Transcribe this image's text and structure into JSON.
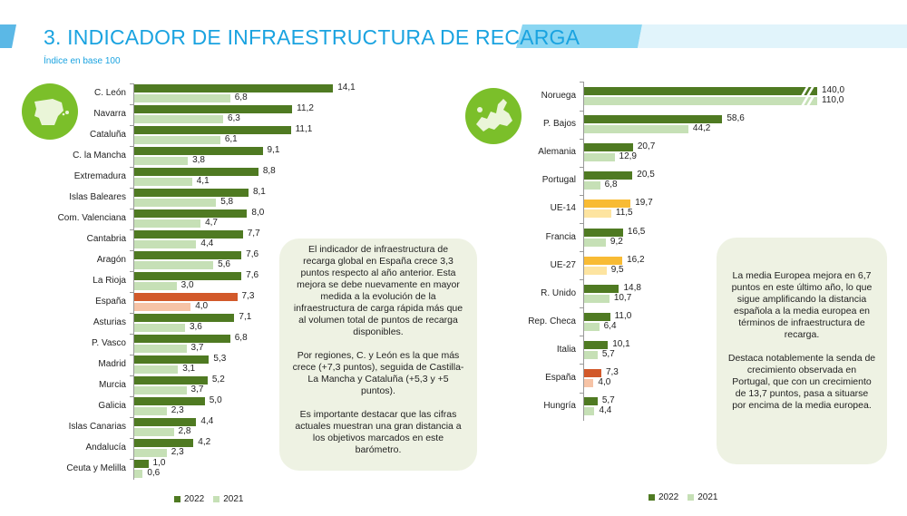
{
  "header": {
    "title": "3. INDICADOR DE INFRAESTRUCTURA DE RECARGA",
    "subtitle": "Índice en base 100"
  },
  "colors": {
    "y2022": "#4f7a22",
    "y2021": "#c6e0b6",
    "spain2022": "#d2592a",
    "spain2021": "#f6c3a6",
    "eu2022": "#f8bb34",
    "eu2021": "#fde4a0",
    "title": "#1aa3e0",
    "icon": "#7bbf2a",
    "box": "#eef2e3"
  },
  "icons": {
    "left": "spain-map-icon",
    "right": "europe-map-icon"
  },
  "chart_data": [
    {
      "type": "bar",
      "orientation": "horizontal",
      "legend": [
        "2022",
        "2021"
      ],
      "legend_placement": "bottom",
      "categories": [
        "C. León",
        "Navarra",
        "Cataluña",
        "C. la Mancha",
        "Extremadura",
        "Islas Baleares",
        "Com. Valenciana",
        "Cantabria",
        "Aragón",
        "La Rioja",
        "España",
        "Asturias",
        "P. Vasco",
        "Madrid",
        "Murcia",
        "Galicia",
        "Islas Canarias",
        "Andalucía",
        "Ceuta y Melilla"
      ],
      "series": [
        {
          "name": "2022",
          "values": [
            14.1,
            11.2,
            11.1,
            9.1,
            8.8,
            8.1,
            8.0,
            7.7,
            7.6,
            7.6,
            7.3,
            7.1,
            6.8,
            5.3,
            5.2,
            5.0,
            4.4,
            4.2,
            1.0
          ]
        },
        {
          "name": "2021",
          "values": [
            6.8,
            6.3,
            6.1,
            3.8,
            4.1,
            5.8,
            4.7,
            4.4,
            5.6,
            3.0,
            4.0,
            3.6,
            3.7,
            3.1,
            3.7,
            2.3,
            2.8,
            2.3,
            0.6
          ]
        }
      ],
      "labels": {
        "2022": [
          "14,1",
          "11,2",
          "11,1",
          "9,1",
          "8,8",
          "8,1",
          "8,0",
          "7,7",
          "7,6",
          "7,6",
          "7,3",
          "7,1",
          "6,8",
          "5,3",
          "5,2",
          "5,0",
          "4,4",
          "4,2",
          "1,0"
        ],
        "2021": [
          "6,8",
          "6,3",
          "6,1",
          "3,8",
          "4,1",
          "5,8",
          "4,7",
          "4,4",
          "5,6",
          "3,0",
          "4,0",
          "3,6",
          "3,7",
          "3,1",
          "3,7",
          "2,3",
          "2,8",
          "2,3",
          "0,6"
        ]
      },
      "highlight": {
        "España": "spain"
      }
    },
    {
      "type": "bar",
      "orientation": "horizontal",
      "legend": [
        "2022",
        "2021"
      ],
      "legend_placement": "bottom",
      "axis_break": "Noruega",
      "categories": [
        "Noruega",
        "P. Bajos",
        "Alemania",
        "Portugal",
        "UE-14",
        "Francia",
        "UE-27",
        "R. Unido",
        "Rep. Checa",
        "Italia",
        "España",
        "Hungría"
      ],
      "series": [
        {
          "name": "2022",
          "values": [
            140.0,
            58.6,
            20.7,
            20.5,
            19.7,
            16.5,
            16.2,
            14.8,
            11.0,
            10.1,
            7.3,
            5.7
          ]
        },
        {
          "name": "2021",
          "values": [
            110.0,
            44.2,
            12.9,
            6.8,
            11.5,
            9.2,
            9.5,
            10.7,
            6.4,
            5.7,
            4.0,
            4.4
          ]
        }
      ],
      "labels": {
        "2022": [
          "140,0",
          "58,6",
          "20,7",
          "20,5",
          "19,7",
          "16,5",
          "16,2",
          "14,8",
          "11,0",
          "10,1",
          "7,3",
          "5,7"
        ],
        "2021": [
          "110,0",
          "44,2",
          "12,9",
          "6,8",
          "11,5",
          "9,2",
          "9,5",
          "10,7",
          "6,4",
          "5,7",
          "4,0",
          "4,4"
        ]
      },
      "highlight": {
        "España": "spain",
        "UE-14": "eu",
        "UE-27": "eu"
      }
    }
  ],
  "text_left": [
    "El indicador de infraestructura de recarga global en España crece 3,3 puntos respecto al año anterior. Esta mejora se debe nuevamente en mayor medida a la evolución de la infraestructura de carga rápida más que al volumen total de puntos de recarga disponibles.",
    "Por regiones, C. y León es la que más crece (+7,3 puntos), seguida de Castilla-La Mancha y Cataluña (+5,3 y +5 puntos).",
    "Es importante destacar que las cifras actuales muestran una gran distancia a los objetivos marcados en este barómetro."
  ],
  "text_right": [
    "La media Europea mejora en 6,7 puntos en este último año, lo que sigue amplificando la distancia española a la media europea en términos de infraestructura de recarga.",
    "Destaca notablemente la senda de crecimiento observada en Portugal, que con un crecimiento de 13,7 puntos, pasa a situarse por encima de la media europea."
  ]
}
